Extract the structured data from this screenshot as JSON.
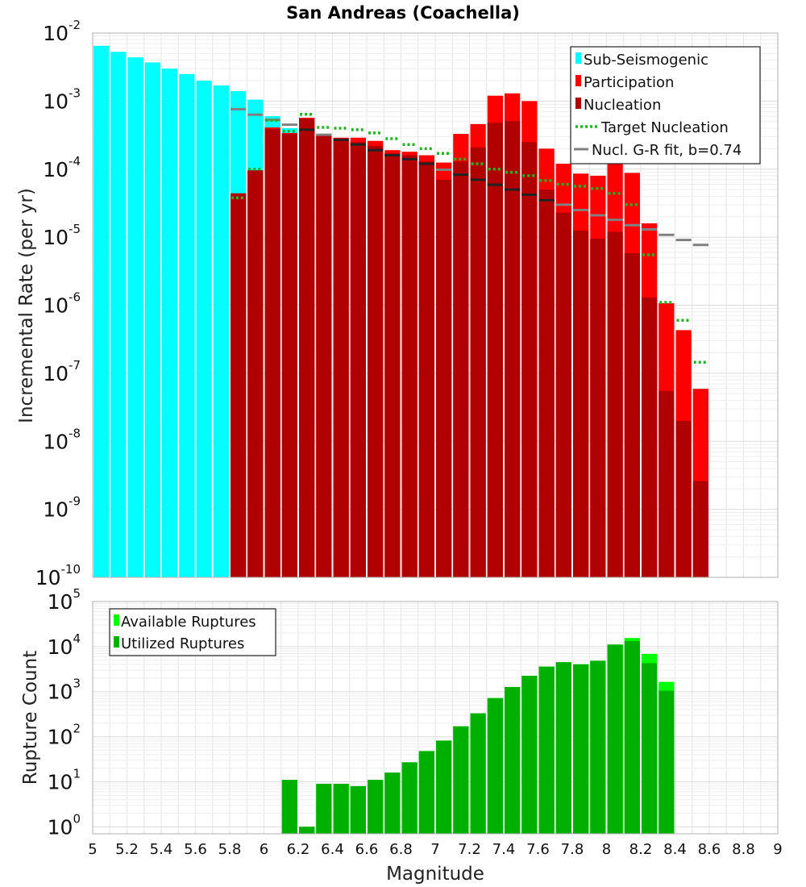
{
  "chart_data": [
    {
      "type": "bar",
      "title": "San Andreas (Coachella)",
      "ylabel": "Incremental Rate (per yr)",
      "xlabel": "",
      "yscale": "log",
      "xlim": [
        5,
        9
      ],
      "ylim": [
        1e-10,
        0.01
      ],
      "grid": true,
      "legend_position": "top-right",
      "bin_width": 0.1,
      "colors": {
        "sub_seismogenic": "#00ffff",
        "participation": "#ff0000",
        "nucleation": "#b00000",
        "target_nucleation": "#22b422",
        "gr_fit": "#808080",
        "gr_fit_on_bar": "#222222"
      },
      "series": [
        {
          "name": "Sub-Seismogenic",
          "x": [
            5.05,
            5.15,
            5.25,
            5.35,
            5.45,
            5.55,
            5.65,
            5.75,
            5.85,
            5.95,
            6.05,
            6.15
          ],
          "values": [
            0.0065,
            0.0053,
            0.0044,
            0.0037,
            0.003,
            0.0025,
            0.002,
            0.0017,
            0.0014,
            0.00105,
            0.0006,
            0.0004
          ]
        },
        {
          "name": "Participation",
          "x": [
            5.85,
            5.95,
            6.05,
            6.15,
            6.25,
            6.35,
            6.45,
            6.55,
            6.65,
            6.75,
            6.85,
            6.95,
            7.05,
            7.15,
            7.25,
            7.35,
            7.45,
            7.55,
            7.65,
            7.75,
            7.85,
            7.95,
            8.05,
            8.15,
            8.25,
            8.35,
            8.45,
            8.55
          ],
          "values": [
            4.4e-05,
            9.6e-05,
            0.00041,
            0.00034,
            0.00057,
            0.00032,
            0.00029,
            0.00029,
            0.00026,
            0.00019,
            0.00018,
            0.00016,
            0.000125,
            0.00033,
            0.00046,
            0.0012,
            0.0013,
            0.001,
            0.0002,
            0.00012,
            8.6e-05,
            8e-05,
            0.00014,
            8.8e-05,
            1.6e-05,
            1.07e-06,
            4.3e-07,
            5.9e-08
          ]
        },
        {
          "name": "Nucleation",
          "x": [
            5.85,
            5.95,
            6.05,
            6.15,
            6.25,
            6.35,
            6.45,
            6.55,
            6.65,
            6.75,
            6.85,
            6.95,
            7.05,
            7.15,
            7.25,
            7.35,
            7.45,
            7.55,
            7.65,
            7.75,
            7.85,
            7.95,
            8.05,
            8.15,
            8.25,
            8.35,
            8.45,
            8.55
          ],
          "values": [
            4.4e-05,
            9.6e-05,
            0.00039,
            0.00033,
            0.00055,
            0.00031,
            0.00028,
            0.00025,
            0.00022,
            0.00017,
            0.00016,
            0.00013,
            7e-05,
            0.00013,
            0.00021,
            0.00048,
            0.00051,
            0.00025,
            5e-05,
            2.3e-05,
            1.25e-05,
            9.5e-06,
            1.2e-05,
            5.8e-06,
            1.3e-06,
            5.5e-08,
            2e-08,
            2.6e-09
          ]
        },
        {
          "name": "Target Nucleation",
          "x": [
            5.85,
            5.95,
            6.05,
            6.15,
            6.25,
            6.35,
            6.45,
            6.55,
            6.65,
            6.75,
            6.85,
            6.95,
            7.05,
            7.15,
            7.25,
            7.35,
            7.45,
            7.55,
            7.65,
            7.75,
            7.85,
            7.95,
            8.05,
            8.15,
            8.25,
            8.35,
            8.45,
            8.55
          ],
          "values": [
            3.8e-05,
            0.0001,
            0.00052,
            0.00036,
            0.00064,
            0.00041,
            0.0004,
            0.00038,
            0.00034,
            0.00028,
            0.00023,
            0.0002,
            0.00017,
            0.00014,
            0.00012,
            0.0001,
            9e-05,
            8e-05,
            6.8e-05,
            6e-05,
            5.6e-05,
            5.2e-05,
            4.4e-05,
            3e-05,
            5.5e-06,
            1.1e-06,
            6e-07,
            1.45e-07
          ]
        },
        {
          "name": "Nucl. G-R fit, b=0.74",
          "x": [
            5.85,
            5.95,
            6.05,
            6.15,
            6.25,
            6.35,
            6.45,
            6.55,
            6.65,
            6.75,
            6.85,
            6.95,
            7.05,
            7.15,
            7.25,
            7.35,
            7.45,
            7.55,
            7.65,
            7.75,
            7.85,
            7.95,
            8.05,
            8.15,
            8.25,
            8.35,
            8.45,
            8.55
          ],
          "values": [
            0.00076,
            0.00063,
            0.00053,
            0.00045,
            0.00038,
            0.00032,
            0.00027,
            0.00023,
            0.00019,
            0.00016,
            0.00014,
            0.00012,
            9.8e-05,
            8.3e-05,
            7e-05,
            5.9e-05,
            5e-05,
            4.2e-05,
            3.5e-05,
            3e-05,
            2.5e-05,
            2.1e-05,
            1.8e-05,
            1.5e-05,
            1.3e-05,
            1.08e-05,
            9.1e-06,
            7.7e-06
          ]
        }
      ],
      "legend": [
        {
          "label": "Sub-Seismogenic",
          "style": "bar",
          "color": "#00ffff"
        },
        {
          "label": "Participation",
          "style": "bar",
          "color": "#ff0000"
        },
        {
          "label": "Nucleation",
          "style": "bar",
          "color": "#b00000"
        },
        {
          "label": "Target Nucleation",
          "style": "dotted",
          "color": "#22b422"
        },
        {
          "label": "Nucl. G-R fit, b=0.74",
          "style": "line",
          "color": "#808080"
        }
      ],
      "yticks": [
        {
          "base": "10",
          "exp": "-2"
        },
        {
          "base": "10",
          "exp": "-3"
        },
        {
          "base": "10",
          "exp": "-4"
        },
        {
          "base": "10",
          "exp": "-5"
        },
        {
          "base": "10",
          "exp": "-6"
        },
        {
          "base": "10",
          "exp": "-7"
        },
        {
          "base": "10",
          "exp": "-8"
        },
        {
          "base": "10",
          "exp": "-9"
        },
        {
          "base": "10",
          "exp": "-10"
        }
      ]
    },
    {
      "type": "bar",
      "title": "",
      "ylabel": "Rupture Count",
      "xlabel": "Magnitude",
      "yscale": "log",
      "xlim": [
        5,
        9
      ],
      "ylim": [
        0.7,
        100000
      ],
      "grid": true,
      "legend_position": "top-left",
      "bin_width": 0.1,
      "colors": {
        "available": "#00ff00",
        "utilized": "#00b000"
      },
      "series": [
        {
          "name": "Available Ruptures",
          "x": [
            6.15,
            6.25,
            6.35,
            6.45,
            6.55,
            6.65,
            6.75,
            6.85,
            6.95,
            7.05,
            7.15,
            7.25,
            7.35,
            7.45,
            7.55,
            7.65,
            7.75,
            7.85,
            7.95,
            8.05,
            8.15,
            8.25,
            8.35
          ],
          "values": [
            11,
            1,
            9,
            9,
            8,
            11,
            16,
            27,
            48,
            82,
            170,
            330,
            720,
            1270,
            2250,
            3600,
            4500,
            4050,
            4850,
            11100,
            15500,
            6900,
            1650
          ]
        },
        {
          "name": "Utilized Ruptures",
          "x": [
            6.15,
            6.25,
            6.35,
            6.45,
            6.55,
            6.65,
            6.75,
            6.85,
            6.95,
            7.05,
            7.15,
            7.25,
            7.35,
            7.45,
            7.55,
            7.65,
            7.75,
            7.85,
            7.95,
            8.05,
            8.15,
            8.25,
            8.35
          ],
          "values": [
            11,
            1,
            9,
            9,
            8,
            11,
            16,
            27,
            48,
            82,
            170,
            330,
            720,
            1270,
            2250,
            3600,
            4500,
            4050,
            4850,
            11100,
            13200,
            4300,
            1050
          ]
        }
      ],
      "legend": [
        {
          "label": "Available Ruptures",
          "style": "bar",
          "color": "#00ff00"
        },
        {
          "label": "Utilized Ruptures",
          "style": "bar",
          "color": "#00b000"
        }
      ],
      "yticks": [
        {
          "base": "10",
          "exp": "5"
        },
        {
          "base": "10",
          "exp": "4"
        },
        {
          "base": "10",
          "exp": "3"
        },
        {
          "base": "10",
          "exp": "2"
        },
        {
          "base": "10",
          "exp": "1"
        },
        {
          "base": "10",
          "exp": "0"
        }
      ],
      "xticks": [
        "5",
        "5.2",
        "5.4",
        "5.6",
        "5.8",
        "6",
        "6.2",
        "6.4",
        "6.6",
        "6.8",
        "7",
        "7.2",
        "7.4",
        "7.6",
        "7.8",
        "8",
        "8.2",
        "8.4",
        "8.6",
        "8.8",
        "9"
      ]
    }
  ]
}
